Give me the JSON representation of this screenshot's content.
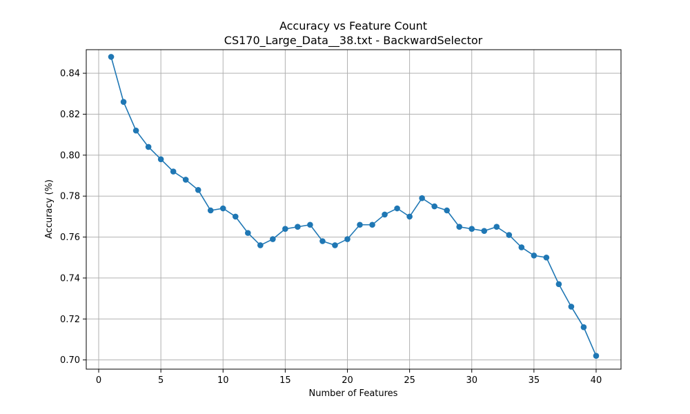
{
  "chart_data": {
    "type": "line",
    "title": "Accuracy vs Feature Count",
    "subtitle": "CS170_Large_Data__38.txt - BackwardSelector",
    "xlabel": "Number of Features",
    "ylabel": "Accuracy (%)",
    "xlim": [
      -1,
      42
    ],
    "ylim": [
      0.6955,
      0.8515
    ],
    "xticks": [
      0,
      5,
      10,
      15,
      20,
      25,
      30,
      35,
      40
    ],
    "yticks": [
      0.7,
      0.72,
      0.74,
      0.76,
      0.78,
      0.8,
      0.82,
      0.84
    ],
    "grid": true,
    "series": [
      {
        "color": "#1f77b4",
        "marker": "circle",
        "x": [
          1,
          2,
          3,
          4,
          5,
          6,
          7,
          8,
          9,
          10,
          11,
          12,
          13,
          14,
          15,
          16,
          17,
          18,
          19,
          20,
          21,
          22,
          23,
          24,
          25,
          26,
          27,
          28,
          29,
          30,
          31,
          32,
          33,
          34,
          35,
          36,
          37,
          38,
          39,
          40
        ],
        "y": [
          0.848,
          0.826,
          0.812,
          0.804,
          0.798,
          0.792,
          0.788,
          0.783,
          0.773,
          0.774,
          0.77,
          0.762,
          0.756,
          0.759,
          0.764,
          0.765,
          0.766,
          0.758,
          0.756,
          0.759,
          0.766,
          0.766,
          0.771,
          0.774,
          0.77,
          0.779,
          0.775,
          0.773,
          0.765,
          0.764,
          0.763,
          0.765,
          0.761,
          0.755,
          0.751,
          0.75,
          0.737,
          0.726,
          0.716,
          0.702
        ]
      }
    ]
  }
}
